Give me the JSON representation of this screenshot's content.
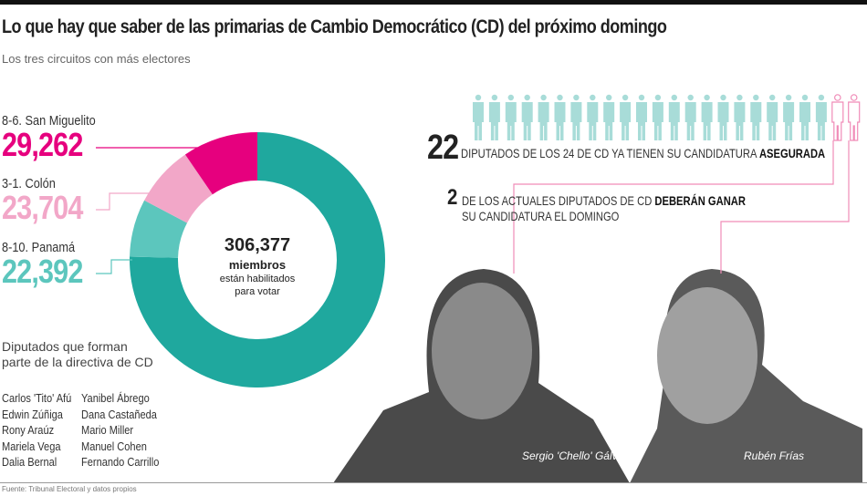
{
  "title": "Lo que hay que saber de las primarias de Cambio Democrático (CD) del próximo domingo",
  "subtitle": "Los tres circuitos con más electores",
  "chart_data": {
    "type": "pie",
    "total": 306377,
    "center": {
      "value": "306,377",
      "unit": "miembros",
      "note_line1": "están habilitados",
      "note_line2": "para votar"
    },
    "slices": [
      {
        "label": "8-6. San Miguelito",
        "value": 29262,
        "display": "29,262",
        "color": "#e6007e"
      },
      {
        "label": "3-1. Colón",
        "value": 23704,
        "display": "23,704",
        "color": "#f2a7c8"
      },
      {
        "label": "8-10. Panamá",
        "value": 22392,
        "display": "22,392",
        "color": "#5cc6bd"
      },
      {
        "label": "",
        "value": 231019,
        "color": "#1fa89e"
      }
    ]
  },
  "directiva": {
    "heading_line1": "Diputados que forman",
    "heading_line2": "parte de la directiva de CD",
    "col1": [
      "Carlos 'Tito' Afú",
      "Edwin Zúñiga",
      "Rony Araúz",
      "Mariela Vega",
      "Dalia Bernal"
    ],
    "col2": [
      "Yanibel Ábrego",
      "Dana Castañeda",
      "Mario Miller",
      "Manuel Cohen",
      "Fernando Carrillo"
    ]
  },
  "diputados": {
    "secured": 22,
    "total": 24,
    "pending": 2,
    "figure_color": "#a8dcd8",
    "pending_color": "#f08cb8",
    "stmt1_num": "22",
    "stmt1_text": "DIPUTADOS DE LOS 24 DE CD YA TIENEN SU CANDIDATURA ",
    "stmt1_bold": "ASEGURADA",
    "stmt2_num": "2",
    "stmt2_text": "DE LOS ACTUALES DIPUTADOS DE CD ",
    "stmt2_bold": "DEBERÁN GANAR",
    "stmt2_line2": "SU CANDIDATURA EL DOMINGO"
  },
  "photos": [
    {
      "caption": "Sergio 'Chello' Gálvez"
    },
    {
      "caption": "Rubén Frías"
    }
  ],
  "source": "Fuente: Tribunal Electoral y datos propios"
}
